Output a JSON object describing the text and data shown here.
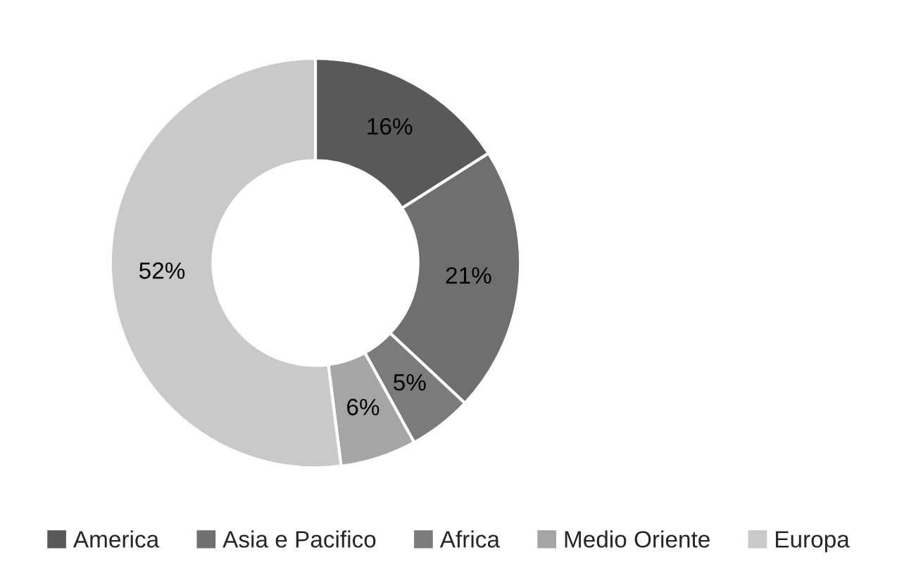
{
  "chart_data": {
    "type": "donut",
    "categories": [
      "America",
      "Asia e Pacifico",
      "Africa",
      "Medio Oriente",
      "Europa"
    ],
    "values": [
      16,
      21,
      5,
      6,
      52
    ],
    "colors": [
      "#595959",
      "#6f6f6f",
      "#7b7b7b",
      "#a5a5a5",
      "#c9c9c9"
    ],
    "value_labels": [
      "16%",
      "21%",
      "5%",
      "6%",
      "52%"
    ],
    "legend": "bottom"
  }
}
